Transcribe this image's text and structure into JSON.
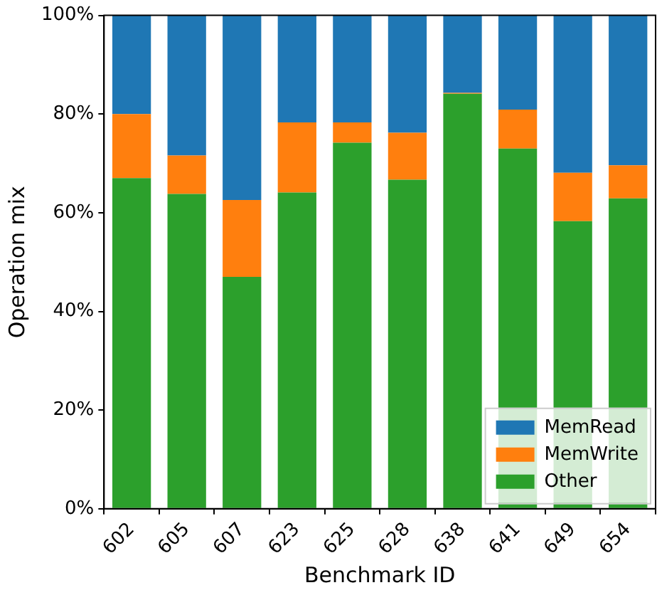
{
  "chart_data": {
    "type": "bar",
    "stacked": true,
    "xlabel": "Benchmark ID",
    "ylabel": "Operation mix",
    "categories": [
      "602",
      "605",
      "607",
      "623",
      "625",
      "628",
      "638",
      "641",
      "649",
      "654"
    ],
    "series": [
      {
        "name": "Other",
        "color": "#2ca02c",
        "values": [
          67.0,
          63.8,
          47.0,
          64.1,
          74.2,
          66.7,
          84.1,
          73.0,
          58.3,
          62.9
        ]
      },
      {
        "name": "MemWrite",
        "color": "#ff7f0e",
        "values": [
          13.0,
          7.8,
          15.6,
          14.2,
          4.1,
          9.5,
          0.2,
          7.9,
          9.8,
          6.7
        ]
      },
      {
        "name": "MemRead",
        "color": "#1f77b4",
        "values": [
          20.0,
          28.4,
          37.4,
          21.7,
          21.7,
          23.8,
          15.7,
          19.1,
          31.9,
          30.4
        ]
      }
    ],
    "ylim": [
      0,
      100
    ],
    "yticks": [
      {
        "value": 0,
        "label": "0%"
      },
      {
        "value": 20,
        "label": "20%"
      },
      {
        "value": 40,
        "label": "40%"
      },
      {
        "value": 60,
        "label": "60%"
      },
      {
        "value": 80,
        "label": "80%"
      },
      {
        "value": 100,
        "label": "100%"
      }
    ],
    "grid": false,
    "legend": "bottom right"
  }
}
